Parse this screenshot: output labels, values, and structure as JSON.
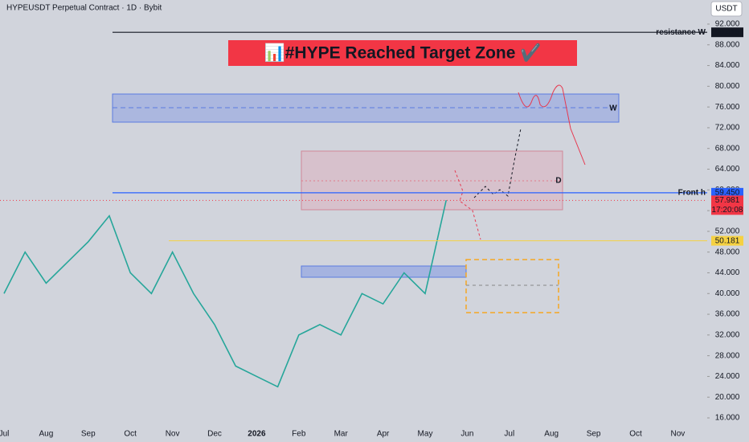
{
  "header": {
    "symbol": "HYPEUSDT Perpetual Contract · 1D · Bybit",
    "currency_button": "USDT"
  },
  "chart_data": {
    "type": "line",
    "title": "📊#HYPE Reached Target Zone ✔️",
    "categories": [
      "Jul",
      null,
      "Aug",
      null,
      "Sep",
      null,
      "Oct",
      null,
      "Nov",
      null,
      "Dec",
      null,
      "2026",
      null,
      "Feb",
      null,
      "Mar",
      null,
      "Apr",
      null,
      "May",
      null,
      "Jun",
      null,
      "Jul",
      null,
      "Aug",
      null,
      "Sep",
      null,
      "Oct",
      null,
      "Nov"
    ],
    "series": [
      {
        "name": "HYPEUSDT",
        "color": "#26a69a",
        "values": [
          40,
          48,
          42,
          46,
          50,
          55,
          44,
          40,
          48,
          40,
          34,
          26,
          24,
          22,
          32,
          34,
          32,
          40,
          38,
          44,
          40,
          58,
          null,
          null,
          null,
          null,
          null,
          null,
          null,
          null,
          null,
          null,
          null
        ]
      }
    ],
    "ylim": [
      14.45,
      96.65
    ],
    "yticks": [
      {
        "value": 16,
        "label": "16.000"
      },
      {
        "value": 20,
        "label": "20.000"
      },
      {
        "value": 24,
        "label": "24.000"
      },
      {
        "value": 28,
        "label": "28.000"
      },
      {
        "value": 32,
        "label": "32.000"
      },
      {
        "value": 36,
        "label": "36.000"
      },
      {
        "value": 40,
        "label": "40.000"
      },
      {
        "value": 44,
        "label": "44.000"
      },
      {
        "value": 48,
        "label": "48.000"
      },
      {
        "value": 52,
        "label": "52.000"
      },
      {
        "value": 56,
        "label": "56.000"
      },
      {
        "value": 60,
        "label": "60.000"
      },
      {
        "value": 64,
        "label": "64.000"
      },
      {
        "value": 68,
        "label": "68.000"
      },
      {
        "value": 72,
        "label": "72.000"
      },
      {
        "value": 76,
        "label": "76.000"
      },
      {
        "value": 80,
        "label": "80.000"
      },
      {
        "value": 84,
        "label": "84.000"
      },
      {
        "value": 88,
        "label": "88.000"
      },
      {
        "value": 92,
        "label": "92.000"
      }
    ],
    "levels": [
      {
        "name": "resistance W",
        "value": 90.416,
        "color": "#131722"
      },
      {
        "name": "Front h",
        "value": 59.45,
        "value_label": "59.450",
        "color": "#2962ff"
      },
      {
        "value": 50.181,
        "color": "#f5d142"
      }
    ],
    "last_price": {
      "value": 57.981,
      "countdown": "17:20:08",
      "color": "#f23645"
    },
    "zone_labels": [
      "W",
      "D"
    ]
  }
}
